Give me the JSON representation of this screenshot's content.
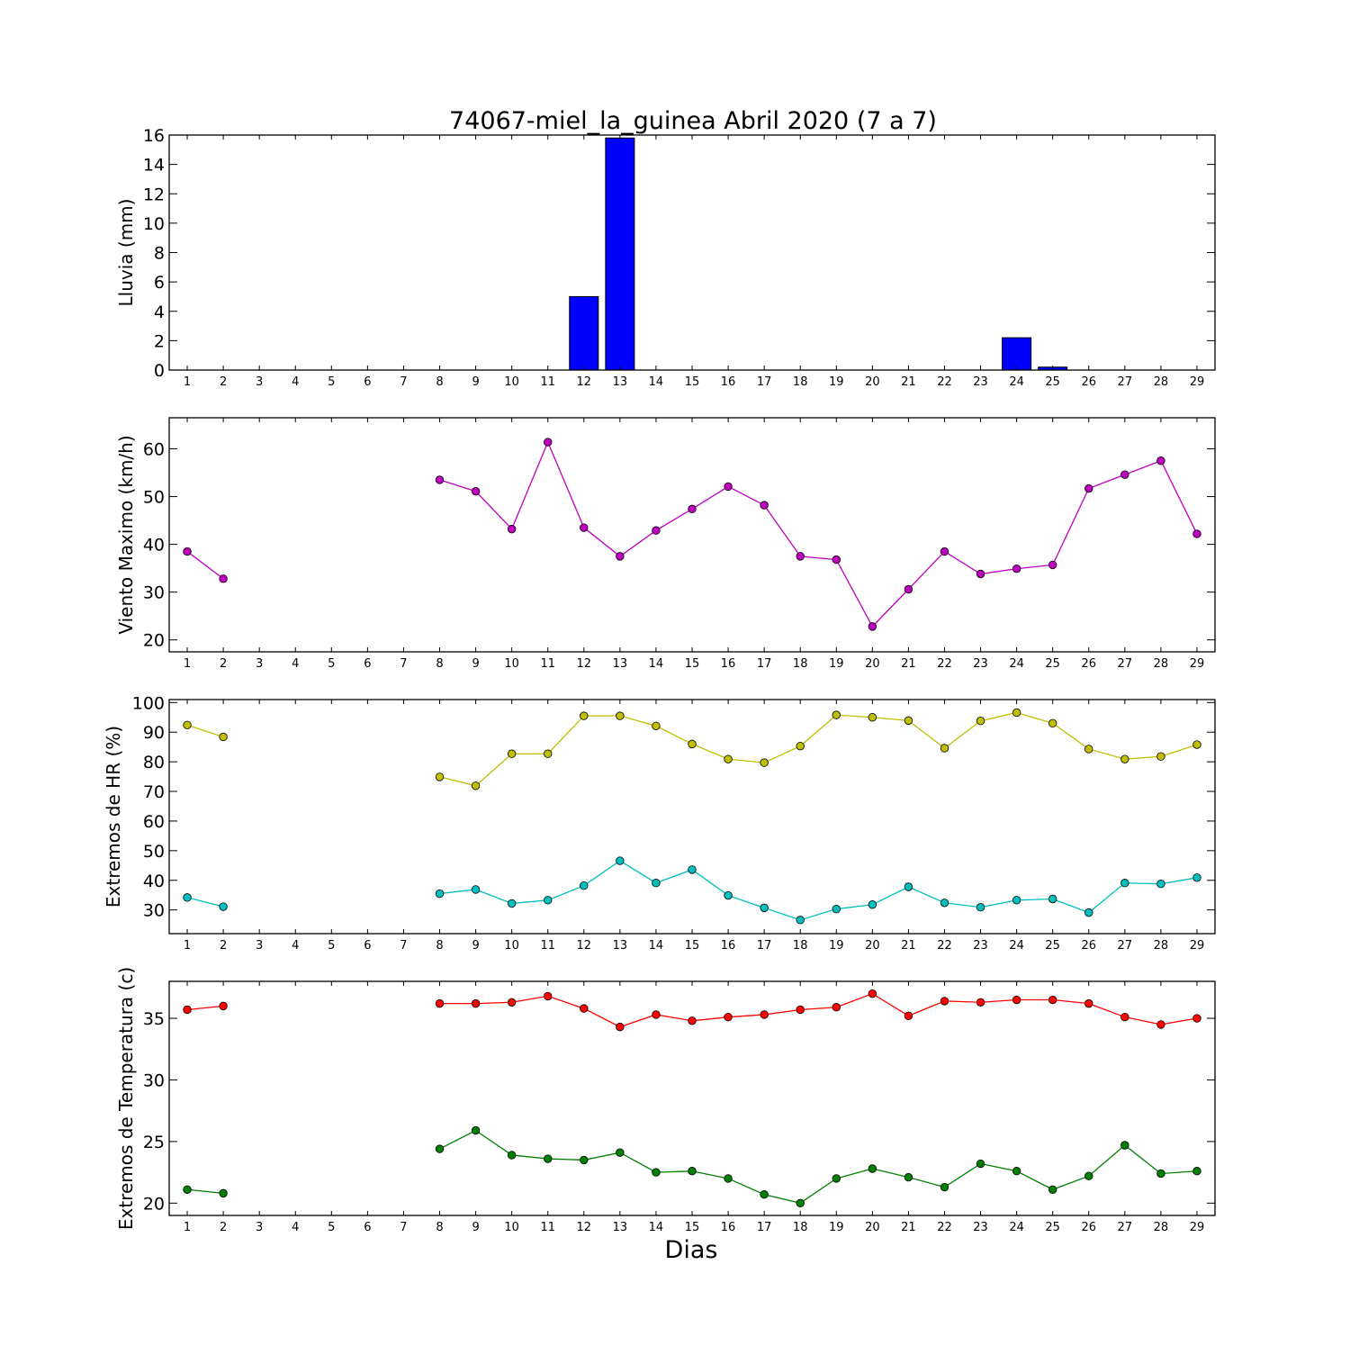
{
  "figure": {
    "title": "74067-miel_la_guinea Abril 2020  (7 a 7)",
    "xlabel": "Dias"
  },
  "chart_data": [
    {
      "type": "bar",
      "ylabel": "Lluvia (mm)",
      "x": [
        1,
        2,
        3,
        4,
        5,
        6,
        7,
        8,
        9,
        10,
        11,
        12,
        13,
        14,
        15,
        16,
        17,
        18,
        19,
        20,
        21,
        22,
        23,
        24,
        25,
        26,
        27,
        28,
        29
      ],
      "xlim": [
        0.5,
        29.5
      ],
      "ylim": [
        0,
        16
      ],
      "yticks": [
        0,
        2,
        4,
        6,
        8,
        10,
        12,
        14,
        16
      ],
      "grid": false,
      "series": [
        {
          "color": "#0000ff",
          "values": [
            0,
            0,
            0,
            0,
            0,
            0,
            0,
            0,
            0,
            0,
            0,
            5.0,
            15.8,
            0,
            0,
            0,
            0,
            0,
            0,
            0,
            0,
            0,
            0,
            2.2,
            0.2,
            0,
            0,
            0,
            0
          ]
        }
      ]
    },
    {
      "type": "line",
      "ylabel": "Viento Maximo (km/h)",
      "x": [
        1,
        2,
        3,
        4,
        5,
        6,
        7,
        8,
        9,
        10,
        11,
        12,
        13,
        14,
        15,
        16,
        17,
        18,
        19,
        20,
        21,
        22,
        23,
        24,
        25,
        26,
        27,
        28,
        29
      ],
      "xlim": [
        0.5,
        29.5
      ],
      "ylim": [
        17.5,
        66.5
      ],
      "yticks": [
        20,
        30,
        40,
        50,
        60
      ],
      "grid": false,
      "series": [
        {
          "color": "#bf00bf",
          "values": [
            38.5,
            32.8,
            null,
            null,
            null,
            null,
            null,
            53.5,
            51.1,
            43.2,
            61.4,
            43.5,
            37.5,
            42.9,
            47.4,
            52.1,
            48.2,
            37.5,
            36.8,
            22.8,
            30.6,
            38.5,
            33.8,
            34.9,
            35.7,
            51.7,
            54.6,
            57.5,
            42.2
          ]
        }
      ]
    },
    {
      "type": "line",
      "ylabel": "Extremos de HR (%)",
      "x": [
        1,
        2,
        3,
        4,
        5,
        6,
        7,
        8,
        9,
        10,
        11,
        12,
        13,
        14,
        15,
        16,
        17,
        18,
        19,
        20,
        21,
        22,
        23,
        24,
        25,
        26,
        27,
        28,
        29
      ],
      "xlim": [
        0.5,
        29.5
      ],
      "ylim": [
        22,
        101
      ],
      "yticks": [
        30,
        40,
        50,
        60,
        70,
        80,
        90,
        100
      ],
      "grid": false,
      "series": [
        {
          "color": "#bfbf00",
          "values": [
            92.4,
            88.4,
            null,
            null,
            null,
            null,
            null,
            74.9,
            71.9,
            82.7,
            82.7,
            95.5,
            95.5,
            92.1,
            86.0,
            80.9,
            79.7,
            85.3,
            95.8,
            95.0,
            93.9,
            84.6,
            93.8,
            96.6,
            93.0,
            84.3,
            80.9,
            81.8,
            85.8
          ]
        },
        {
          "color": "#00bfbf",
          "values": [
            34.2,
            31.1,
            null,
            null,
            null,
            null,
            null,
            35.5,
            36.9,
            32.2,
            33.3,
            38.2,
            46.6,
            39.1,
            43.6,
            34.9,
            30.7,
            26.6,
            30.3,
            31.8,
            37.8,
            32.4,
            30.9,
            33.3,
            33.7,
            29.1,
            39.1,
            38.8,
            40.9
          ]
        }
      ]
    },
    {
      "type": "line",
      "ylabel": "Extremos de Temperatura (c)",
      "x": [
        1,
        2,
        3,
        4,
        5,
        6,
        7,
        8,
        9,
        10,
        11,
        12,
        13,
        14,
        15,
        16,
        17,
        18,
        19,
        20,
        21,
        22,
        23,
        24,
        25,
        26,
        27,
        28,
        29
      ],
      "xlim": [
        0.5,
        29.5
      ],
      "ylim": [
        19,
        38
      ],
      "yticks": [
        20,
        25,
        30,
        35
      ],
      "grid": false,
      "series": [
        {
          "color": "#ff0000",
          "values": [
            35.7,
            36.0,
            null,
            null,
            null,
            null,
            null,
            36.2,
            36.2,
            36.3,
            36.8,
            35.8,
            34.3,
            35.3,
            34.8,
            35.1,
            35.3,
            35.7,
            35.9,
            37.0,
            35.2,
            36.4,
            36.3,
            36.5,
            36.5,
            36.2,
            35.1,
            34.5,
            35.0
          ]
        },
        {
          "color": "#008000",
          "values": [
            21.1,
            20.8,
            null,
            null,
            null,
            null,
            null,
            24.4,
            25.9,
            23.9,
            23.6,
            23.5,
            24.1,
            22.5,
            22.6,
            22.0,
            20.7,
            20.0,
            22.0,
            22.8,
            22.1,
            21.3,
            23.2,
            22.6,
            21.1,
            22.2,
            24.7,
            22.4,
            22.6
          ]
        }
      ]
    }
  ]
}
